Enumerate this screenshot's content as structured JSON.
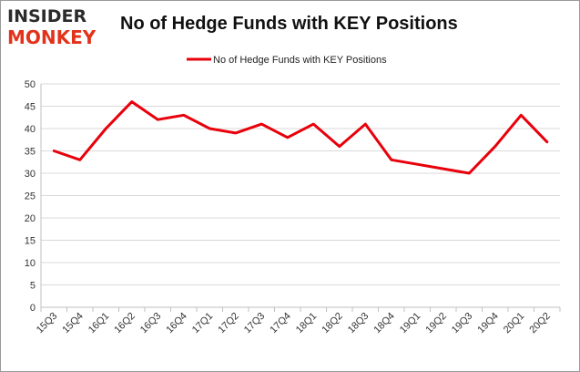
{
  "logo": {
    "top_text": "INSIDER",
    "bottom_text": "MONKEY"
  },
  "chart_data": {
    "type": "line",
    "title": "No of Hedge Funds with KEY Positions",
    "xlabel": "",
    "ylabel": "",
    "categories": [
      "15Q3",
      "15Q4",
      "16Q1",
      "16Q2",
      "16Q3",
      "16Q4",
      "17Q1",
      "17Q2",
      "17Q3",
      "17Q4",
      "18Q1",
      "18Q2",
      "18Q3",
      "18Q4",
      "19Q1",
      "19Q2",
      "19Q3",
      "19Q4",
      "20Q1",
      "20Q2"
    ],
    "series": [
      {
        "name": "No of Hedge Funds with KEY Positions",
        "color": "#e8000b",
        "values": [
          35,
          33,
          40,
          46,
          42,
          43,
          40,
          39,
          41,
          38,
          41,
          36,
          41,
          33,
          32,
          31,
          30,
          36,
          43,
          37
        ]
      }
    ],
    "ylim": [
      0,
      50
    ],
    "yticks": [
      0,
      5,
      10,
      15,
      20,
      25,
      30,
      35,
      40,
      45,
      50
    ],
    "grid": true,
    "legend_position": "top-center"
  }
}
